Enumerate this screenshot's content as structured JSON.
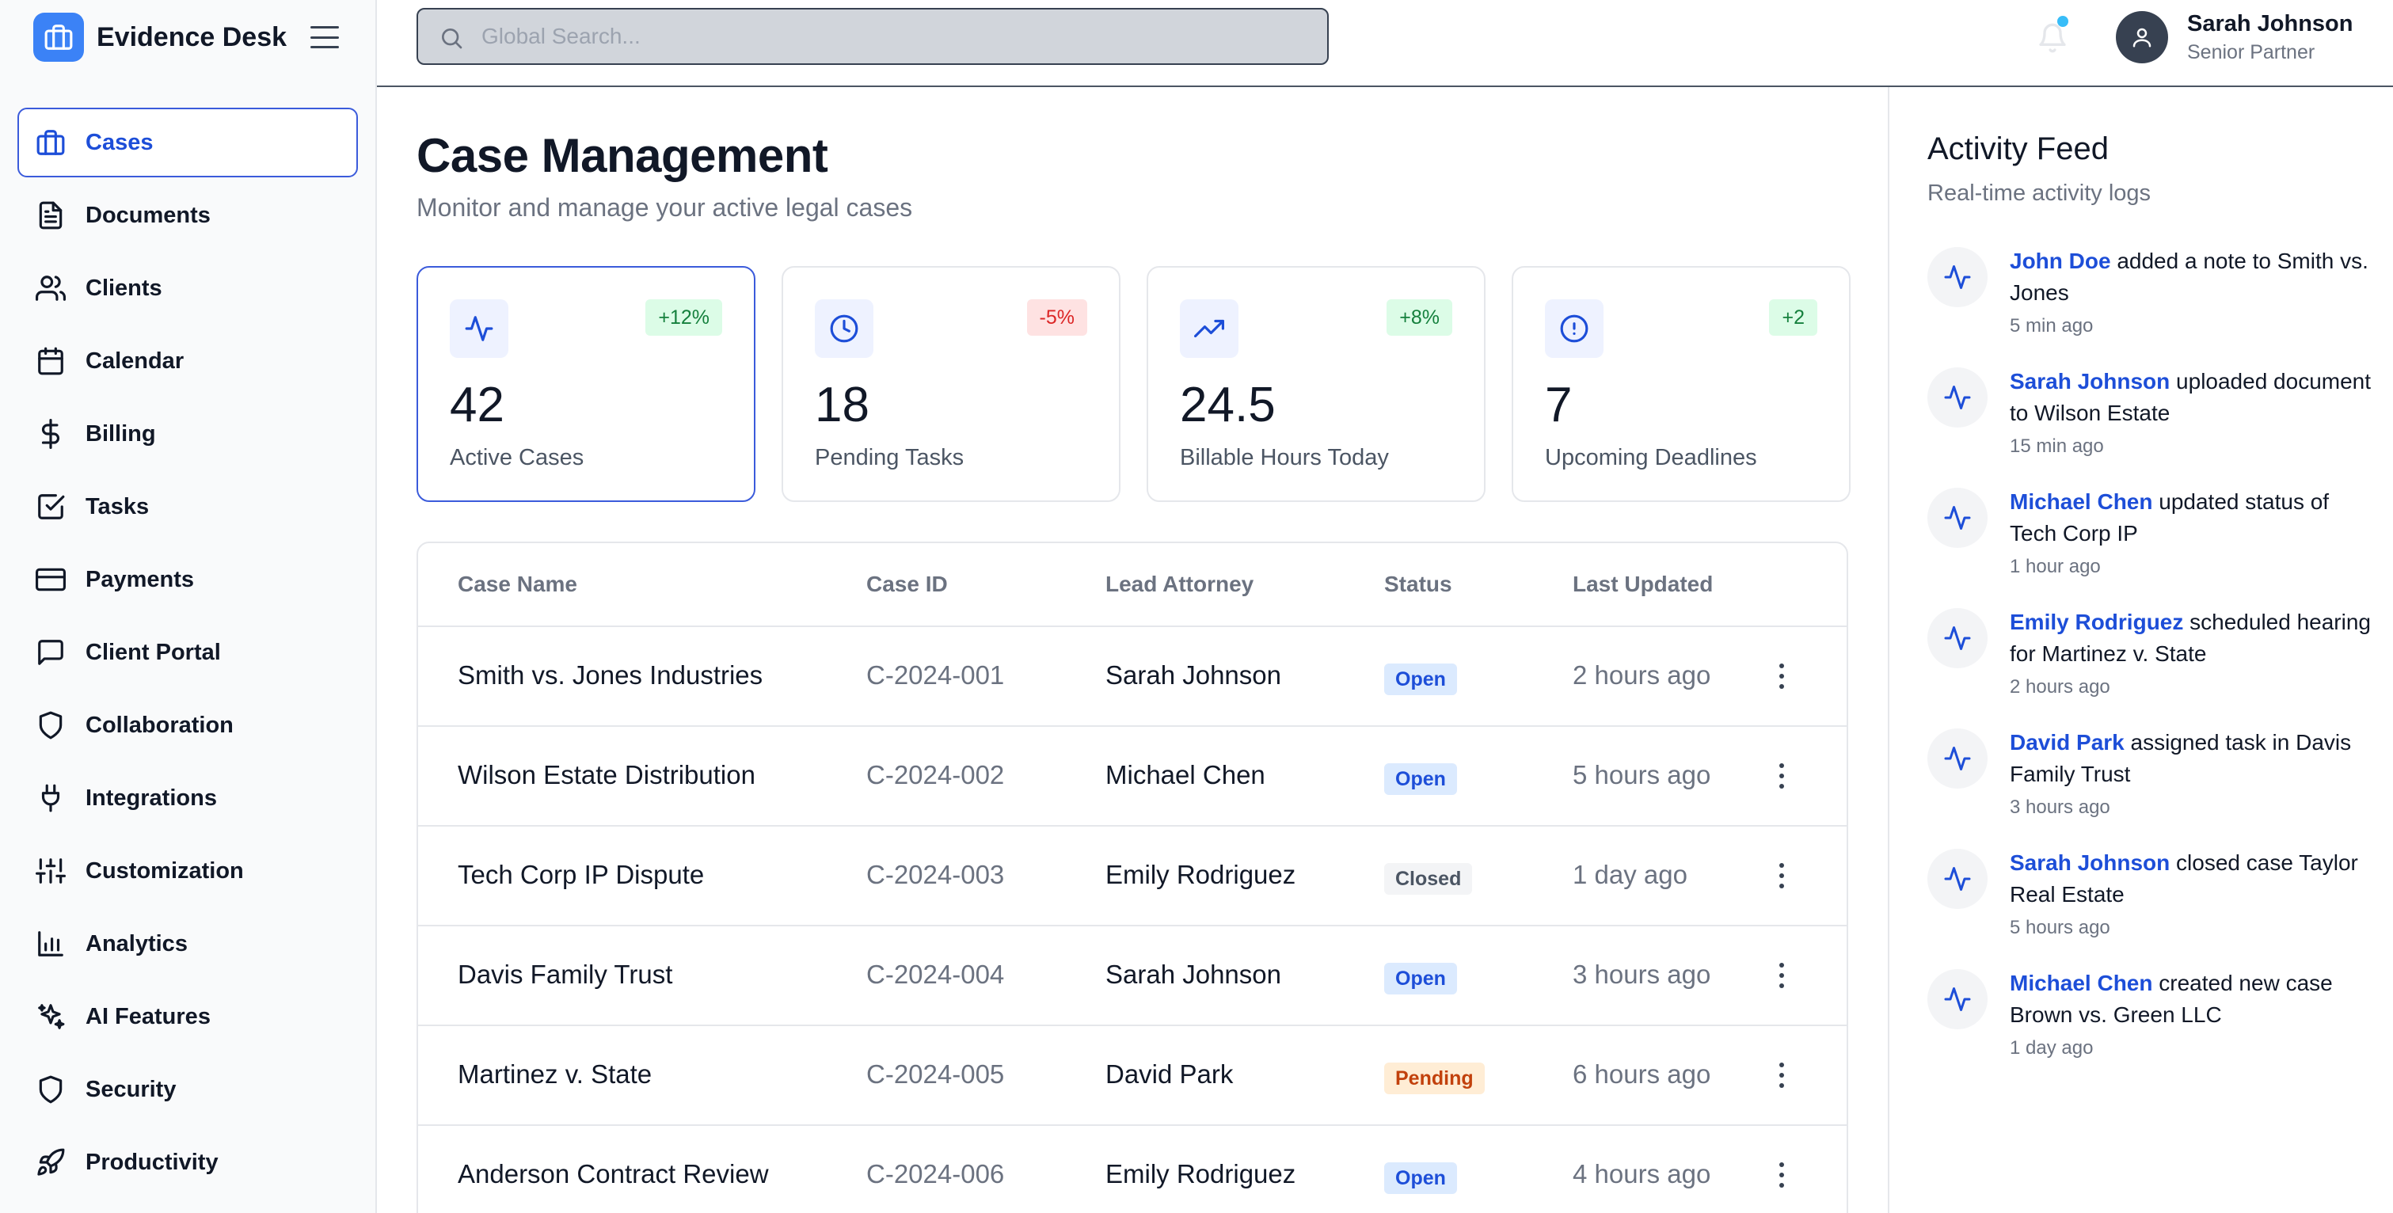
{
  "app": {
    "name": "Evidence Desk"
  },
  "colors": {
    "accent": "#3b5bdb",
    "brand": "#3b82f6",
    "open": "#1d4ed8",
    "pending": "#c2410c",
    "positive": "#15803d",
    "negative": "#dc2626"
  },
  "sidebar": {
    "items": [
      {
        "label": "Cases",
        "icon": "briefcase-icon",
        "active": true
      },
      {
        "label": "Documents",
        "icon": "document-icon"
      },
      {
        "label": "Clients",
        "icon": "users-icon"
      },
      {
        "label": "Calendar",
        "icon": "calendar-icon"
      },
      {
        "label": "Billing",
        "icon": "dollar-icon"
      },
      {
        "label": "Tasks",
        "icon": "checkbox-icon"
      },
      {
        "label": "Payments",
        "icon": "credit-card-icon"
      },
      {
        "label": "Client Portal",
        "icon": "message-icon"
      },
      {
        "label": "Collaboration",
        "icon": "shield-icon"
      },
      {
        "label": "Integrations",
        "icon": "plug-icon"
      },
      {
        "label": "Customization",
        "icon": "sliders-icon"
      },
      {
        "label": "Analytics",
        "icon": "bar-chart-icon"
      },
      {
        "label": "AI Features",
        "icon": "sparkles-icon"
      },
      {
        "label": "Security",
        "icon": "shield-icon"
      },
      {
        "label": "Productivity",
        "icon": "rocket-icon"
      }
    ]
  },
  "header": {
    "search_placeholder": "Global Search...",
    "user_name": "Sarah Johnson",
    "user_role": "Senior Partner"
  },
  "main": {
    "title": "Case Management",
    "subtitle": "Monitor and manage your active legal cases",
    "stats": [
      {
        "value": "42",
        "label": "Active Cases",
        "badge": "+12%",
        "trend": "pos",
        "icon": "activity-icon"
      },
      {
        "value": "18",
        "label": "Pending Tasks",
        "badge": "-5%",
        "trend": "neg",
        "icon": "clock-icon"
      },
      {
        "value": "24.5",
        "label": "Billable Hours Today",
        "badge": "+8%",
        "trend": "pos",
        "icon": "trending-up-icon"
      },
      {
        "value": "7",
        "label": "Upcoming Deadlines",
        "badge": "+2",
        "trend": "pos",
        "icon": "alert-circle-icon"
      }
    ],
    "table": {
      "headers": {
        "name": "Case Name",
        "id": "Case ID",
        "attorney": "Lead Attorney",
        "status": "Status",
        "updated": "Last Updated"
      },
      "rows": [
        {
          "name": "Smith vs. Jones Industries",
          "id": "C-2024-001",
          "attorney": "Sarah Johnson",
          "status": "Open",
          "status_type": "open",
          "updated": "2 hours ago"
        },
        {
          "name": "Wilson Estate Distribution",
          "id": "C-2024-002",
          "attorney": "Michael Chen",
          "status": "Open",
          "status_type": "open",
          "updated": "5 hours ago"
        },
        {
          "name": "Tech Corp IP Dispute",
          "id": "C-2024-003",
          "attorney": "Emily Rodriguez",
          "status": "Closed",
          "status_type": "closed",
          "updated": "1 day ago"
        },
        {
          "name": "Davis Family Trust",
          "id": "C-2024-004",
          "attorney": "Sarah Johnson",
          "status": "Open",
          "status_type": "open",
          "updated": "3 hours ago"
        },
        {
          "name": "Martinez v. State",
          "id": "C-2024-005",
          "attorney": "David Park",
          "status": "Pending",
          "status_type": "pending",
          "updated": "6 hours ago"
        },
        {
          "name": "Anderson Contract Review",
          "id": "C-2024-006",
          "attorney": "Emily Rodriguez",
          "status": "Open",
          "status_type": "open",
          "updated": "4 hours ago"
        }
      ]
    }
  },
  "feed": {
    "title": "Activity Feed",
    "subtitle": "Real-time activity logs",
    "items": [
      {
        "actor": "John Doe",
        "text": " added a note to Smith vs. Jones",
        "time": "5 min ago"
      },
      {
        "actor": "Sarah Johnson",
        "text": " uploaded document to Wilson Estate",
        "time": "15 min ago"
      },
      {
        "actor": "Michael Chen",
        "text": " updated status of Tech Corp IP",
        "time": "1 hour ago"
      },
      {
        "actor": "Emily Rodriguez",
        "text": " scheduled hearing for Martinez v. State",
        "time": "2 hours ago"
      },
      {
        "actor": "David Park",
        "text": " assigned task in Davis Family Trust",
        "time": "3 hours ago"
      },
      {
        "actor": "Sarah Johnson",
        "text": " closed case Taylor Real Estate",
        "time": "5 hours ago"
      },
      {
        "actor": "Michael Chen",
        "text": " created new case Brown vs. Green LLC",
        "time": "1 day ago"
      }
    ]
  }
}
